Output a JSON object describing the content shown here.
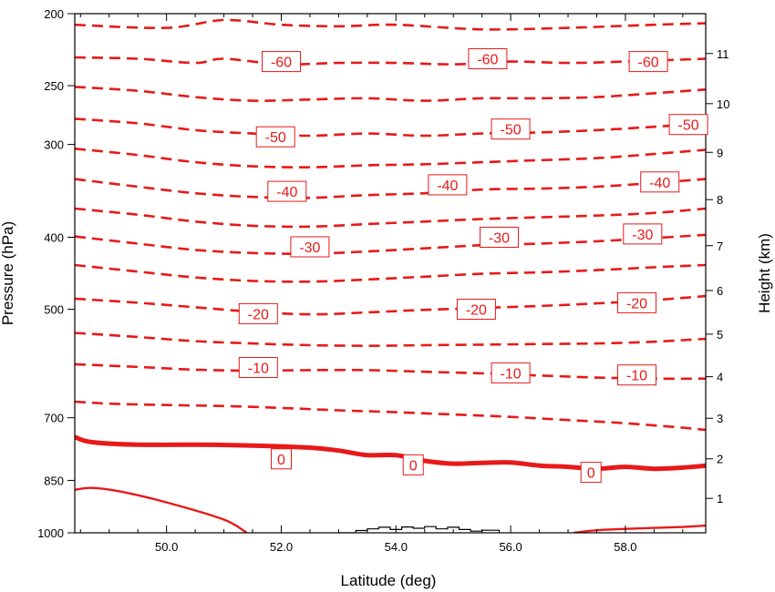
{
  "chart_data": {
    "type": "contour",
    "title": "",
    "xlabel": "Latitude (deg)",
    "ylabel": "Pressure (hPa)",
    "y2label": "Height (km)",
    "xlim": [
      48.4,
      59.4
    ],
    "ylim_pressure": [
      1000,
      200
    ],
    "pressure_scale": "log",
    "x_ticks": [
      "50.0",
      "52.0",
      "54.0",
      "56.0",
      "58.0"
    ],
    "y_ticks": [
      "200",
      "250",
      "300",
      "400",
      "500",
      "700",
      "850",
      "1000"
    ],
    "y2_ticks": [
      "1",
      "2",
      "3",
      "4",
      "5",
      "6",
      "7",
      "8",
      "9",
      "10",
      "11"
    ],
    "line_color": "#e81919",
    "terrain_color": "#000000",
    "contours": [
      {
        "level": -65,
        "style": "dashed",
        "labels": [],
        "points": [
          [
            48.4,
            207
          ],
          [
            50.0,
            209
          ],
          [
            51.0,
            204
          ],
          [
            52.0,
            207
          ],
          [
            53.0,
            208
          ],
          [
            54.0,
            207
          ],
          [
            55.5,
            210
          ],
          [
            57.0,
            209
          ],
          [
            58.5,
            207
          ],
          [
            59.4,
            206
          ]
        ]
      },
      {
        "level": -60,
        "style": "dashed",
        "labels": [
          [
            52.0,
            232
          ],
          [
            55.6,
            230
          ],
          [
            58.4,
            232
          ]
        ],
        "points": [
          [
            48.4,
            229
          ],
          [
            49.5,
            230
          ],
          [
            50.5,
            233
          ],
          [
            51.0,
            230
          ],
          [
            52.0,
            234
          ],
          [
            53.0,
            233
          ],
          [
            54.0,
            233
          ],
          [
            55.0,
            234
          ],
          [
            56.0,
            232
          ],
          [
            57.0,
            233
          ],
          [
            58.0,
            232
          ],
          [
            59.4,
            230
          ]
        ]
      },
      {
        "level": -55,
        "style": "dashed",
        "labels": [],
        "points": [
          [
            48.4,
            251
          ],
          [
            49.5,
            254
          ],
          [
            50.5,
            259
          ],
          [
            51.5,
            262
          ],
          [
            52.5,
            261
          ],
          [
            53.5,
            260
          ],
          [
            54.5,
            262
          ],
          [
            55.5,
            260
          ],
          [
            56.5,
            260
          ],
          [
            57.5,
            259
          ],
          [
            58.5,
            256
          ],
          [
            59.4,
            253
          ]
        ]
      },
      {
        "level": -50,
        "style": "dashed",
        "labels": [
          [
            51.9,
            293
          ],
          [
            56.0,
            286
          ],
          [
            59.1,
            282
          ]
        ],
        "points": [
          [
            48.4,
            277
          ],
          [
            49.5,
            281
          ],
          [
            50.5,
            287
          ],
          [
            51.5,
            290
          ],
          [
            52.5,
            292
          ],
          [
            53.5,
            290
          ],
          [
            54.5,
            292
          ],
          [
            55.5,
            290
          ],
          [
            56.5,
            289
          ],
          [
            57.5,
            287
          ],
          [
            58.5,
            284
          ],
          [
            59.4,
            281
          ]
        ]
      },
      {
        "level": -45,
        "style": "dashed",
        "labels": [],
        "points": [
          [
            48.4,
            304
          ],
          [
            49.5,
            310
          ],
          [
            50.5,
            317
          ],
          [
            51.5,
            321
          ],
          [
            52.5,
            322
          ],
          [
            53.5,
            320
          ],
          [
            54.5,
            319
          ],
          [
            55.5,
            317
          ],
          [
            56.5,
            315
          ],
          [
            57.5,
            313
          ],
          [
            58.5,
            309
          ],
          [
            59.4,
            305
          ]
        ]
      },
      {
        "level": -40,
        "style": "dashed",
        "labels": [
          [
            52.1,
            347
          ],
          [
            54.9,
            340
          ],
          [
            58.6,
            337
          ]
        ],
        "points": [
          [
            48.4,
            334
          ],
          [
            49.5,
            342
          ],
          [
            50.5,
            349
          ],
          [
            51.5,
            353
          ],
          [
            52.5,
            354
          ],
          [
            53.5,
            351
          ],
          [
            54.5,
            349
          ],
          [
            55.5,
            345
          ],
          [
            56.5,
            344
          ],
          [
            57.5,
            342
          ],
          [
            58.5,
            338
          ],
          [
            59.4,
            334
          ]
        ]
      },
      {
        "level": -35,
        "style": "dashed",
        "labels": [],
        "points": [
          [
            48.4,
            366
          ],
          [
            49.5,
            373
          ],
          [
            50.5,
            381
          ],
          [
            51.5,
            386
          ],
          [
            52.5,
            387
          ],
          [
            53.5,
            384
          ],
          [
            54.5,
            381
          ],
          [
            55.5,
            378
          ],
          [
            56.5,
            376
          ],
          [
            57.5,
            374
          ],
          [
            58.5,
            371
          ],
          [
            59.4,
            366
          ]
        ]
      },
      {
        "level": -30,
        "style": "dashed",
        "labels": [
          [
            52.5,
            412
          ],
          [
            55.8,
            400
          ],
          [
            58.3,
            396
          ]
        ],
        "points": [
          [
            48.4,
            399
          ],
          [
            49.5,
            408
          ],
          [
            50.5,
            416
          ],
          [
            51.5,
            420
          ],
          [
            52.5,
            421
          ],
          [
            53.5,
            418
          ],
          [
            54.5,
            414
          ],
          [
            55.5,
            410
          ],
          [
            56.5,
            408
          ],
          [
            57.5,
            405
          ],
          [
            58.5,
            401
          ],
          [
            59.4,
            397
          ]
        ]
      },
      {
        "level": -25,
        "style": "dashed",
        "labels": [],
        "points": [
          [
            48.4,
            436
          ],
          [
            49.5,
            445
          ],
          [
            50.5,
            453
          ],
          [
            51.5,
            458
          ],
          [
            52.5,
            459
          ],
          [
            53.5,
            456
          ],
          [
            54.5,
            452
          ],
          [
            55.5,
            448
          ],
          [
            56.5,
            446
          ],
          [
            57.5,
            443
          ],
          [
            58.5,
            439
          ],
          [
            59.4,
            436
          ]
        ]
      },
      {
        "level": -20,
        "style": "dashed",
        "labels": [
          [
            51.6,
            507
          ],
          [
            55.4,
            500
          ],
          [
            58.2,
            490
          ]
        ],
        "points": [
          [
            48.4,
            484
          ],
          [
            49.5,
            490
          ],
          [
            50.5,
            497
          ],
          [
            51.5,
            504
          ],
          [
            52.5,
            508
          ],
          [
            53.5,
            505
          ],
          [
            54.5,
            501
          ],
          [
            55.5,
            498
          ],
          [
            56.5,
            495
          ],
          [
            57.5,
            491
          ],
          [
            58.5,
            486
          ],
          [
            59.4,
            480
          ]
        ]
      },
      {
        "level": -15,
        "style": "dashed",
        "labels": [],
        "points": [
          [
            48.4,
            538
          ],
          [
            49.5,
            545
          ],
          [
            50.5,
            552
          ],
          [
            51.5,
            556
          ],
          [
            52.5,
            559
          ],
          [
            53.5,
            560
          ],
          [
            54.5,
            559
          ],
          [
            55.5,
            558
          ],
          [
            56.5,
            557
          ],
          [
            57.5,
            556
          ],
          [
            58.5,
            553
          ],
          [
            59.4,
            548
          ]
        ]
      },
      {
        "level": -10,
        "style": "dashed",
        "labels": [
          [
            51.6,
            599
          ],
          [
            56.0,
            609
          ],
          [
            58.2,
            613
          ]
        ],
        "points": [
          [
            48.4,
            593
          ],
          [
            49.5,
            598
          ],
          [
            50.5,
            603
          ],
          [
            51.5,
            605
          ],
          [
            52.5,
            604
          ],
          [
            53.5,
            604
          ],
          [
            54.5,
            607
          ],
          [
            55.5,
            610
          ],
          [
            56.5,
            614
          ],
          [
            57.5,
            618
          ],
          [
            58.5,
            620
          ],
          [
            59.4,
            620
          ]
        ]
      },
      {
        "level": -5,
        "style": "dashed",
        "labels": [],
        "points": [
          [
            48.4,
            666
          ],
          [
            49.0,
            670
          ],
          [
            50.0,
            673
          ],
          [
            51.0,
            675
          ],
          [
            52.0,
            679
          ],
          [
            53.0,
            684
          ],
          [
            54.0,
            688
          ],
          [
            55.0,
            693
          ],
          [
            56.0,
            698
          ],
          [
            57.0,
            705
          ],
          [
            58.0,
            712
          ],
          [
            59.0,
            722
          ],
          [
            59.4,
            727
          ]
        ]
      },
      {
        "level": 0,
        "style": "thick",
        "labels": [
          [
            52.0,
            795
          ],
          [
            54.3,
            810
          ],
          [
            57.4,
            829
          ]
        ],
        "points": [
          [
            48.4,
            743
          ],
          [
            48.7,
            755
          ],
          [
            49.5,
            761
          ],
          [
            50.5,
            761
          ],
          [
            51.5,
            763
          ],
          [
            52.5,
            768
          ],
          [
            53.0,
            775
          ],
          [
            53.5,
            786
          ],
          [
            54.0,
            786
          ],
          [
            54.5,
            800
          ],
          [
            55.0,
            807
          ],
          [
            55.5,
            805
          ],
          [
            56.0,
            804
          ],
          [
            56.5,
            812
          ],
          [
            57.0,
            815
          ],
          [
            57.5,
            820
          ],
          [
            58.0,
            815
          ],
          [
            58.5,
            820
          ],
          [
            59.0,
            817
          ],
          [
            59.4,
            812
          ]
        ]
      },
      {
        "level": 5,
        "style": "solid",
        "labels": [],
        "points": [
          [
            48.4,
            875
          ],
          [
            48.7,
            870
          ],
          [
            49.2,
            880
          ],
          [
            50.0,
            910
          ],
          [
            51.0,
            960
          ],
          [
            51.4,
            1000
          ]
        ]
      },
      {
        "level": 5,
        "style": "solid",
        "labels": [],
        "points": [
          [
            57.1,
            1000
          ],
          [
            57.5,
            992
          ],
          [
            58.0,
            988
          ],
          [
            58.5,
            985
          ],
          [
            59.0,
            982
          ],
          [
            59.4,
            978
          ]
        ]
      }
    ],
    "terrain": {
      "x": [
        53.0,
        53.3,
        53.5,
        53.7,
        53.9,
        54.1,
        54.3,
        54.5,
        54.7,
        54.9,
        55.1,
        55.3,
        55.5,
        55.8
      ],
      "p": [
        1000,
        993,
        988,
        983,
        990,
        982,
        986,
        981,
        988,
        983,
        990,
        995,
        992,
        1000
      ]
    }
  }
}
